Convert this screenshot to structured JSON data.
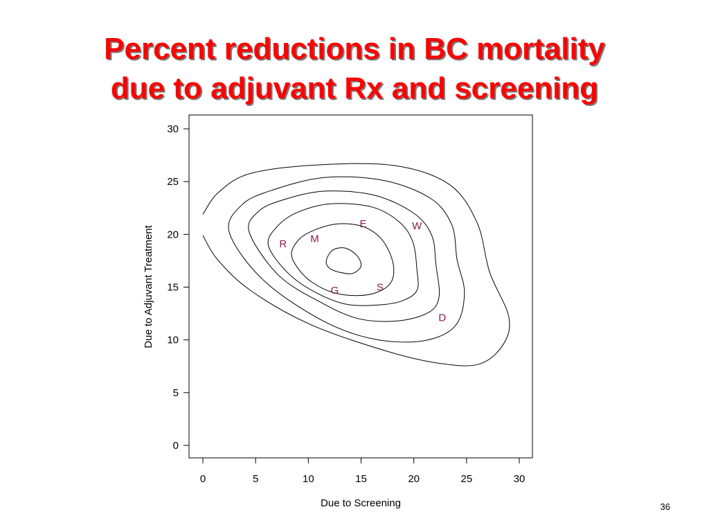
{
  "slide": {
    "title_line1": "Percent reductions in BC mortality",
    "title_line2": "due to adjuvant Rx and screening",
    "title_color": "#ff0000",
    "page_number": "36"
  },
  "chart_data": {
    "type": "contour",
    "xlabel": "Due to Screening",
    "ylabel": "Due to Adjuvant Treatment",
    "xlim": [
      0,
      30
    ],
    "ylim": [
      0,
      30
    ],
    "xticks": [
      0,
      5,
      10,
      15,
      20,
      25,
      30
    ],
    "yticks": [
      0,
      5,
      10,
      15,
      20,
      25,
      30
    ],
    "grid": false,
    "label_color": "#8b1a4a",
    "points": [
      {
        "label": "E",
        "x": 15.2,
        "y": 21.0
      },
      {
        "label": "W",
        "x": 20.3,
        "y": 20.8
      },
      {
        "label": "M",
        "x": 10.6,
        "y": 19.6
      },
      {
        "label": "R",
        "x": 7.6,
        "y": 19.1
      },
      {
        "label": "S",
        "x": 16.8,
        "y": 15.0
      },
      {
        "label": "G",
        "x": 12.5,
        "y": 14.7
      },
      {
        "label": "D",
        "x": 22.7,
        "y": 12.1
      }
    ],
    "contours": [
      {
        "level": 1,
        "points": [
          [
            11.7,
            17.5
          ],
          [
            12.3,
            18.5
          ],
          [
            13.5,
            18.7
          ],
          [
            14.6,
            18.0
          ],
          [
            15.0,
            17.0
          ],
          [
            14.2,
            16.3
          ],
          [
            13.0,
            16.4
          ],
          [
            12.0,
            16.8
          ]
        ]
      },
      {
        "level": 2,
        "points": [
          [
            8.4,
            18.2
          ],
          [
            9.2,
            19.6
          ],
          [
            10.8,
            20.5
          ],
          [
            12.8,
            21.0
          ],
          [
            15.0,
            20.8
          ],
          [
            16.6,
            19.9
          ],
          [
            17.6,
            18.5
          ],
          [
            18.1,
            16.8
          ],
          [
            17.8,
            15.4
          ],
          [
            16.5,
            14.5
          ],
          [
            14.6,
            14.2
          ],
          [
            12.3,
            14.5
          ],
          [
            10.3,
            15.5
          ],
          [
            9.0,
            16.8
          ]
        ]
      },
      {
        "level": 3,
        "points": [
          [
            6.2,
            19.0
          ],
          [
            7.1,
            20.8
          ],
          [
            9.0,
            22.1
          ],
          [
            12.1,
            22.9
          ],
          [
            16.0,
            22.6
          ],
          [
            18.6,
            21.2
          ],
          [
            19.9,
            19.3
          ],
          [
            20.3,
            16.6
          ],
          [
            20.3,
            14.7
          ],
          [
            18.9,
            13.7
          ],
          [
            16.5,
            13.3
          ],
          [
            13.5,
            13.4
          ],
          [
            10.5,
            14.6
          ],
          [
            8.0,
            16.4
          ]
        ]
      },
      {
        "level": 4,
        "points": [
          [
            4.4,
            20.2
          ],
          [
            5.3,
            22.2
          ],
          [
            7.7,
            23.3
          ],
          [
            11.6,
            24.1
          ],
          [
            16.3,
            23.7
          ],
          [
            20.0,
            22.0
          ],
          [
            21.7,
            19.9
          ],
          [
            22.1,
            17.1
          ],
          [
            22.4,
            14.1
          ],
          [
            21.4,
            12.6
          ],
          [
            18.5,
            11.8
          ],
          [
            14.8,
            12.0
          ],
          [
            11.3,
            13.5
          ],
          [
            7.2,
            16.1
          ]
        ]
      },
      {
        "level": 5,
        "points": [
          [
            2.5,
            20.2
          ],
          [
            3.7,
            22.8
          ],
          [
            6.6,
            24.2
          ],
          [
            11.6,
            25.4
          ],
          [
            17.2,
            25.1
          ],
          [
            21.6,
            23.4
          ],
          [
            23.6,
            20.9
          ],
          [
            24.1,
            17.6
          ],
          [
            24.8,
            14.4
          ],
          [
            23.9,
            11.3
          ],
          [
            20.8,
            9.9
          ],
          [
            16.1,
            10.1
          ],
          [
            11.2,
            11.9
          ],
          [
            5.7,
            15.7
          ]
        ]
      },
      {
        "level": 6,
        "open": true,
        "points": [
          [
            0.0,
            21.9
          ],
          [
            1.5,
            24.0
          ],
          [
            4.6,
            25.8
          ],
          [
            11.3,
            26.6
          ],
          [
            18.3,
            26.5
          ],
          [
            23.4,
            24.7
          ],
          [
            26.0,
            21.1
          ],
          [
            27.2,
            16.4
          ],
          [
            29.0,
            12.2
          ],
          [
            28.5,
            9.6
          ],
          [
            26.2,
            7.7
          ],
          [
            22.3,
            7.8
          ],
          [
            17.2,
            9.0
          ],
          [
            10.1,
            11.5
          ],
          [
            4.5,
            14.7
          ],
          [
            1.4,
            17.6
          ],
          [
            0.0,
            19.9
          ]
        ]
      }
    ]
  }
}
